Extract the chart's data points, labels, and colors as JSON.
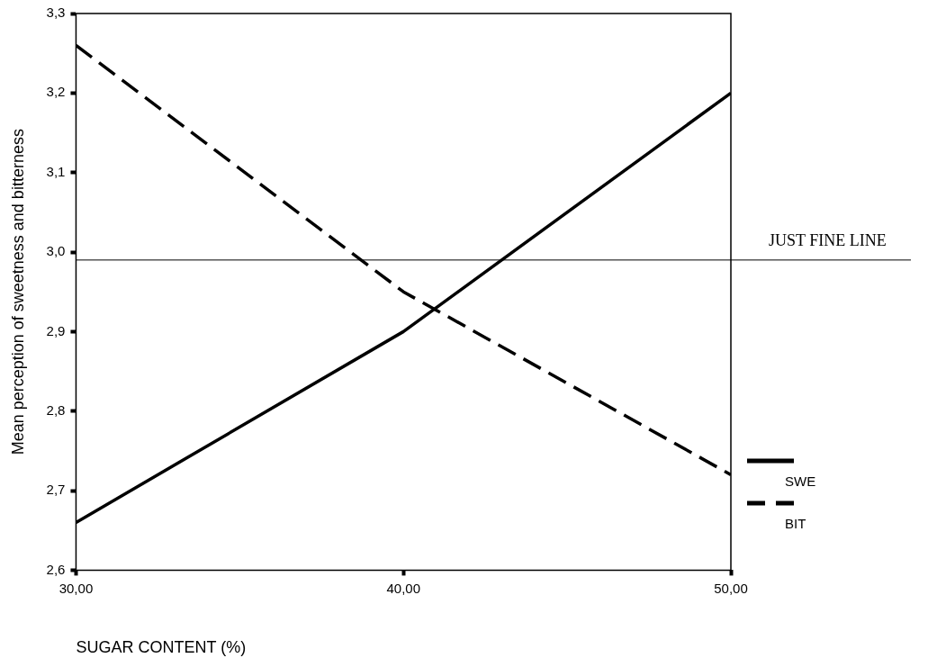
{
  "chart_data": {
    "type": "line",
    "xlabel": "SUGAR CONTENT (%)",
    "ylabel": "Mean perception of sweetness and bitterness",
    "x": [
      30,
      40,
      50
    ],
    "series": [
      {
        "name": "SWE",
        "color": "#000000",
        "values": [
          2.66,
          2.9,
          3.2
        ],
        "line_style": "solid"
      },
      {
        "name": "BIT",
        "color": "#000000",
        "values": [
          3.26,
          2.95,
          2.72
        ],
        "line_style": "dashed"
      }
    ],
    "xlim": [
      30,
      50
    ],
    "xticks": [
      {
        "value": 30,
        "label": "30,00"
      },
      {
        "value": 40,
        "label": "40,00"
      },
      {
        "value": 50,
        "label": "50,00"
      }
    ],
    "ylim": [
      2.6,
      3.3
    ],
    "yticks": [
      {
        "value": 2.6,
        "label": "2,6"
      },
      {
        "value": 2.7,
        "label": "2,7"
      },
      {
        "value": 2.8,
        "label": "2,8"
      },
      {
        "value": 2.9,
        "label": "2,9"
      },
      {
        "value": 3.0,
        "label": "3,0"
      },
      {
        "value": 3.1,
        "label": "3,1"
      },
      {
        "value": 3.2,
        "label": "3,2"
      },
      {
        "value": 3.3,
        "label": "3,3"
      }
    ],
    "ref_lines": [
      {
        "axis": "y",
        "value": 2.99,
        "label": "JUST FINE LINE",
        "color": "#000000"
      }
    ],
    "legend": "bottom right",
    "grid": false,
    "marker": "none"
  }
}
